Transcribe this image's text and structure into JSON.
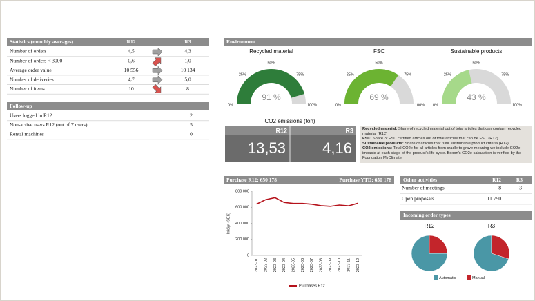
{
  "statistics": {
    "title": "Statistics (monthly averages)",
    "columns": [
      "R12",
      "R3"
    ],
    "rows": [
      [
        "Number of orders",
        "4,5",
        "4,3"
      ],
      [
        "Number of orders < 3000",
        "0,6",
        "1,0"
      ],
      [
        "Average order value",
        "10 556",
        "10 134"
      ],
      [
        "Number of deliveries",
        "4,7",
        "5,0"
      ],
      [
        "Number of items",
        "10",
        "8"
      ]
    ]
  },
  "follow_up": {
    "title": "Follow-up",
    "rows": [
      [
        "Users logged in R12",
        "2"
      ],
      [
        "Non-active users R12 (out of 7 users)",
        "5"
      ],
      [
        "Rental machines",
        "0"
      ]
    ]
  },
  "environment": {
    "title": "Environment"
  },
  "co2": {
    "title": "CO2 emissions (ton)",
    "columns": [
      "R12",
      "R3"
    ],
    "values": [
      "13,53",
      "4,16"
    ]
  },
  "description": [
    {
      "term": "Recycled material:",
      "text": " Share of recycled material out of total articles that can contain recycled material (R12)"
    },
    {
      "term": "FSC:",
      "text": " Share of FSC certified articles out of total articles that can be FSC (R12)"
    },
    {
      "term": "Sustainable products:",
      "text": " Share of articles that fulfill sustainable product criteria (R12)"
    },
    {
      "term": "CO2 emissions:",
      "text": " Total CO2e for all articles from cradle to grave meaning we include CO2e impacts at each stage of the product's life-cycle. Boxon's CO2e calculation is verified by the Foundation MyClimate"
    }
  ],
  "purchase": {
    "r12": "Purchase R12: 650 178",
    "ytd": "Purchase YTD: 650 178"
  },
  "other_activities": {
    "title": "Other activities",
    "columns": [
      "R12",
      "R3"
    ],
    "rows": [
      [
        "Number of meetings",
        "8",
        "3"
      ],
      [
        "Open proposals",
        "11 790"
      ]
    ]
  },
  "incoming_orders": {
    "title": "Incoming order types"
  },
  "chart_data": [
    {
      "type": "gauge",
      "ylim": [
        0,
        100
      ],
      "yticks": [
        {
          "value": 0,
          "label": "0%"
        },
        {
          "value": 25,
          "label": "25%"
        },
        {
          "value": 50,
          "label": "50%"
        },
        {
          "value": 75,
          "label": "75%"
        },
        {
          "value": 100,
          "label": "100%"
        }
      ],
      "track_color": "#d9d9d9",
      "series": [
        {
          "name": "Recycled material",
          "color": "#2e7d3a",
          "values": [
            91
          ],
          "value_labels": [
            "91 %"
          ]
        },
        {
          "name": "FSC",
          "color": "#6cb332",
          "values": [
            69
          ],
          "value_labels": [
            "69 %"
          ]
        },
        {
          "name": "Sustainable products",
          "color": "#a6d98a",
          "values": [
            43
          ],
          "value_labels": [
            "43 %"
          ]
        }
      ]
    },
    {
      "type": "line",
      "y_label": "Inköpt (SEK)",
      "categories": [
        "2023-01",
        "2023-02",
        "2023-03",
        "2023-04",
        "2023-05",
        "2023-06",
        "2023-07",
        "2023-08",
        "2023-09",
        "2023-10",
        "2023-11",
        "2023-12"
      ],
      "series": [
        {
          "name": "Purchases R12",
          "color": "#b5121b",
          "values": [
            640000,
            695000,
            720000,
            660000,
            648000,
            648000,
            638000,
            620000,
            612000,
            628000,
            618000,
            650000
          ]
        }
      ],
      "ylim": [
        0,
        800000
      ],
      "yticks": [
        0,
        {
          "value": 200000,
          "label": "200 000"
        },
        {
          "value": 400000,
          "label": "400 000"
        },
        {
          "value": 600000,
          "label": "600 000"
        },
        {
          "value": 800000,
          "label": "800 000"
        }
      ],
      "grid": false
    },
    {
      "type": "pie",
      "categories": [
        "Automatic",
        "Manual"
      ],
      "colors": [
        "#4a97a6",
        "#c3252b"
      ],
      "series": [
        {
          "name": "R12",
          "values": [
            75,
            25
          ]
        },
        {
          "name": "R3",
          "values": [
            70,
            30
          ]
        }
      ]
    }
  ]
}
